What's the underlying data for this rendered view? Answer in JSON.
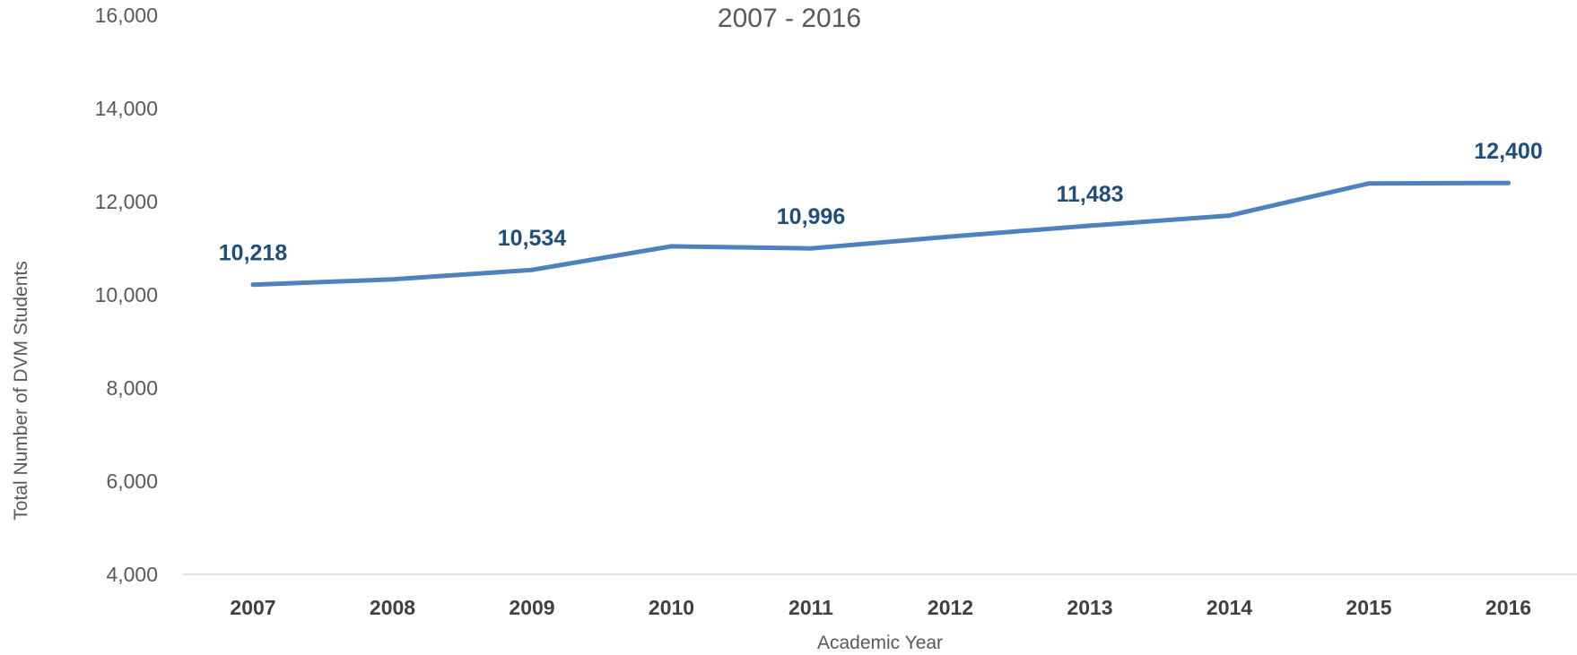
{
  "chart_data": {
    "type": "line",
    "title": "2007 - 2016",
    "xlabel": "Academic Year",
    "ylabel": "Total Number of DVM Students",
    "categories": [
      "2007",
      "2008",
      "2009",
      "2010",
      "2011",
      "2012",
      "2013",
      "2014",
      "2015",
      "2016"
    ],
    "series": [
      {
        "values": [
          10218,
          10330,
          10534,
          11040,
          10996,
          11250,
          11483,
          11700,
          12390,
          12400
        ],
        "color": "#4f81bd"
      }
    ],
    "data_labels": [
      {
        "index": 0,
        "text": "10,218"
      },
      {
        "index": 2,
        "text": "10,534"
      },
      {
        "index": 4,
        "text": "10,996"
      },
      {
        "index": 6,
        "text": "11,483"
      },
      {
        "index": 9,
        "text": "12,400"
      }
    ],
    "ylim": [
      4000,
      16000
    ],
    "yticks": [
      4000,
      6000,
      8000,
      10000,
      12000,
      14000,
      16000
    ],
    "ytick_labels": [
      "4,000",
      "6,000",
      "8,000",
      "10,000",
      "12,000",
      "14,000",
      "16,000"
    ],
    "grid": false,
    "legend": "none"
  }
}
